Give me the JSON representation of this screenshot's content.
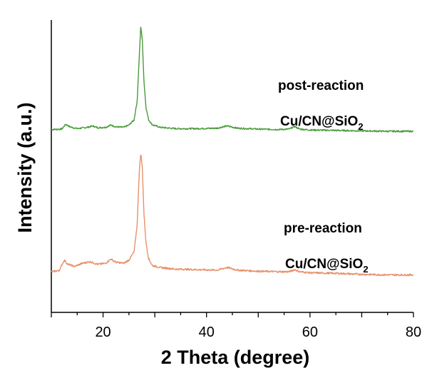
{
  "chart_data": {
    "type": "line",
    "xlabel": "2 Theta (degree)",
    "ylabel": "Intensity (a.u.)",
    "xlim": [
      10,
      80
    ],
    "xticks": [
      "20",
      "40",
      "60",
      "80"
    ],
    "ytick_labels": false,
    "grid": false,
    "legend": "none",
    "series": [
      {
        "label_line1": "post-reaction",
        "label_line2_main": "Cu/CN@SiO",
        "label_line2_sub": "2",
        "color": "#4a9a3c",
        "x": [
          10,
          12,
          12.8,
          13.6,
          15,
          17,
          18,
          19,
          20.5,
          21.5,
          22.5,
          24,
          25,
          26,
          26.6,
          27.0,
          27.3,
          27.6,
          27.9,
          28.3,
          28.8,
          29.5,
          31,
          34,
          38,
          42,
          44,
          46,
          50,
          54,
          56,
          57,
          58,
          60,
          65,
          70,
          75,
          80
        ],
        "y": [
          2.0,
          2.1,
          3.2,
          2.6,
          2.2,
          2.5,
          2.8,
          2.4,
          2.5,
          3.0,
          2.6,
          2.5,
          3.0,
          4.2,
          8.5,
          18.5,
          25.5,
          22.0,
          13.0,
          7.0,
          4.2,
          3.1,
          2.5,
          2.2,
          2.2,
          2.3,
          2.8,
          2.3,
          2.1,
          2.0,
          2.1,
          2.7,
          2.1,
          1.9,
          1.8,
          1.7,
          1.6,
          1.6
        ]
      },
      {
        "label_line1": "pre-reaction",
        "label_line2_main": "Cu/CN@SiO",
        "label_line2_sub": "2",
        "color": "#e8916b",
        "x": [
          10,
          11.5,
          12.5,
          13.2,
          14.5,
          16,
          17.5,
          19,
          20.5,
          21.5,
          22.5,
          24,
          25,
          26,
          26.6,
          27.0,
          27.3,
          27.6,
          27.9,
          28.3,
          28.8,
          29.5,
          31,
          34,
          38,
          42,
          44,
          46,
          50,
          54,
          56,
          57,
          58,
          60,
          65,
          70,
          75,
          80
        ],
        "y": [
          0.0,
          0.2,
          2.2,
          1.4,
          1.0,
          1.6,
          1.9,
          1.4,
          1.6,
          2.4,
          1.8,
          1.6,
          2.2,
          3.8,
          9.0,
          19.0,
          22.5,
          19.5,
          11.0,
          5.5,
          2.5,
          1.2,
          0.8,
          0.5,
          0.4,
          0.3,
          0.8,
          0.3,
          0.1,
          0.0,
          0.0,
          0.4,
          0.0,
          -0.2,
          -0.3,
          -0.5,
          -0.6,
          -0.6
        ]
      }
    ]
  }
}
